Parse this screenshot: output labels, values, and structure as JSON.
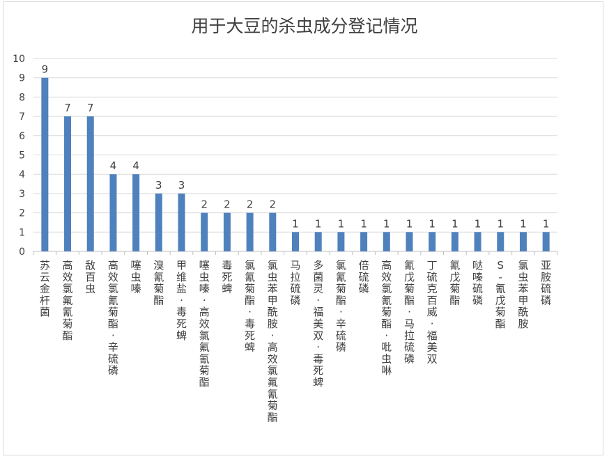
{
  "chart_data": {
    "type": "bar",
    "title": "用于大豆的杀虫成分登记情况",
    "xlabel": "",
    "ylabel": "",
    "ylim": [
      0,
      10
    ],
    "y_ticks": [
      "0",
      "1",
      "2",
      "3",
      "4",
      "5",
      "6",
      "7",
      "8",
      "9",
      "10"
    ],
    "grid": true,
    "legend": "none",
    "bar_color": "#4F81BD",
    "categories": [
      "苏云金杆菌",
      "高效氯氟氰菊酯",
      "敌百虫",
      "高效氯氰菊酯·辛硫磷",
      "噻虫嗪",
      "溴氰菊酯",
      "甲维盐·毒死蜱",
      "噻虫嗪·高效氯氟氰菊酯",
      "毒死蜱",
      "氯氰菊酯·毒死蜱",
      "氯虫苯甲酰胺·高效氯氟氰菊酯",
      "马拉硫磷",
      "多菌灵·福美双·毒死蜱",
      "氯氰菊酯·辛硫磷",
      "倍硫磷",
      "高效氯氰菊酯·吡虫啉",
      "氰戊菊酯·马拉硫磷",
      "丁硫克百威·福美双",
      "氰戊菊酯",
      "哒嗪硫磷",
      "S-氰戊菊酯",
      "氯虫苯甲酰胺",
      "亚胺硫磷"
    ],
    "values": [
      9,
      7,
      7,
      4,
      4,
      3,
      3,
      2,
      2,
      2,
      2,
      1,
      1,
      1,
      1,
      1,
      1,
      1,
      1,
      1,
      1,
      1,
      1
    ],
    "data_labels": [
      "9",
      "7",
      "7",
      "4",
      "4",
      "3",
      "3",
      "2",
      "2",
      "2",
      "2",
      "1",
      "1",
      "1",
      "1",
      "1",
      "1",
      "1",
      "1",
      "1",
      "1",
      "1",
      "1"
    ]
  }
}
